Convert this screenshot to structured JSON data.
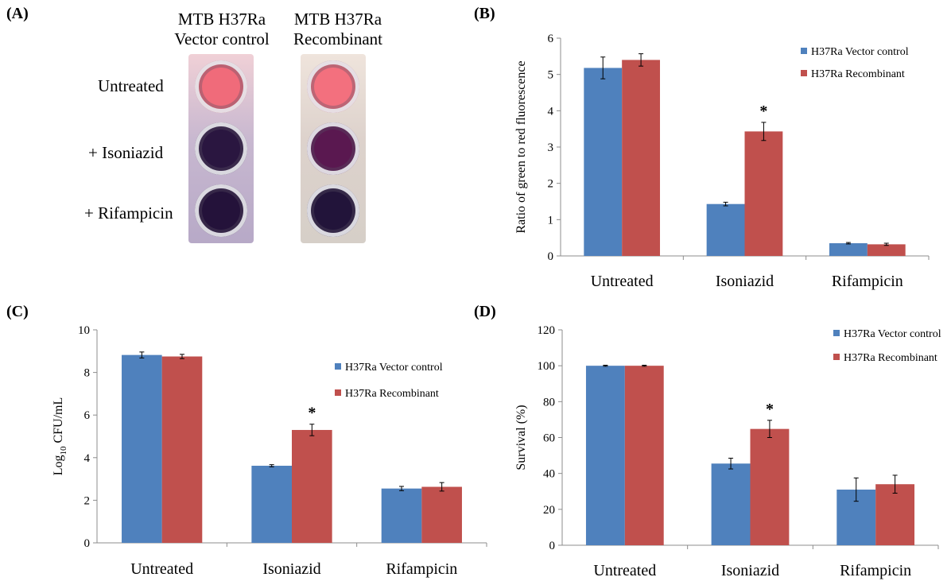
{
  "panels": {
    "a": {
      "label": "(A)",
      "col1": [
        "MTB H37Ra",
        "Vector control"
      ],
      "col2": [
        "MTB H37Ra",
        "Recombinant"
      ],
      "rows": [
        "Untreated",
        "+ Isoniazid",
        "+ Rifampicin"
      ],
      "well_colors": {
        "col1": [
          "#f06b7a",
          "#2a1640",
          "#24123a"
        ],
        "col2": [
          "#f3707e",
          "#5a1850",
          "#22143a"
        ]
      }
    },
    "b": {
      "label": "(B)"
    },
    "c": {
      "label": "(C)"
    },
    "d": {
      "label": "(D)"
    }
  },
  "colors": {
    "vector": "#4f81bd",
    "recombinant": "#c0504d"
  },
  "chart_data": [
    {
      "id": "b",
      "type": "bar",
      "categories": [
        "Untreated",
        "Isoniazid",
        "Rifampicin"
      ],
      "ylabel": "Ratio of green to red fluorescence",
      "ylim": [
        0,
        6
      ],
      "yticks": [
        "0",
        "1",
        "2",
        "3",
        "4",
        "5",
        "6"
      ],
      "legend": "top-right",
      "series": [
        {
          "name": "H37Ra Vector control",
          "values": [
            5.18,
            1.43,
            0.35
          ],
          "errors": [
            0.3,
            0.05,
            0.02
          ]
        },
        {
          "name": "H37Ra Recombinant",
          "values": [
            5.4,
            3.43,
            0.32
          ],
          "errors": [
            0.17,
            0.25,
            0.03
          ]
        }
      ],
      "annotation": "*"
    },
    {
      "id": "c",
      "type": "bar",
      "categories": [
        "Untreated",
        "Isoniazid",
        "Rifampicin"
      ],
      "ylabel_main": "Log",
      "ylabel_sub": "10",
      "ylabel_rest": " CFU/mL",
      "ylim": [
        0,
        10
      ],
      "yticks": [
        "0",
        "2",
        "4",
        "6",
        "8",
        "10"
      ],
      "legend": "top-right",
      "series": [
        {
          "name": "H37Ra Vector control",
          "values": [
            8.82,
            3.62,
            2.55
          ],
          "errors": [
            0.14,
            0.05,
            0.1
          ]
        },
        {
          "name": "H37Ra Recombinant",
          "values": [
            8.75,
            5.3,
            2.63
          ],
          "errors": [
            0.1,
            0.27,
            0.2
          ]
        }
      ],
      "annotation": "*"
    },
    {
      "id": "d",
      "type": "bar",
      "categories": [
        "Untreated",
        "Isoniazid",
        "Rifampicin"
      ],
      "ylabel": "Survival (%)",
      "ylim": [
        0,
        120
      ],
      "yticks": [
        "0",
        "20",
        "40",
        "60",
        "80",
        "100",
        "120"
      ],
      "legend": "top-right",
      "series": [
        {
          "name": "H37Ra Vector control",
          "values": [
            100,
            45.5,
            31
          ],
          "errors": [
            0.3,
            3,
            6.5
          ]
        },
        {
          "name": "H37Ra Recombinant",
          "values": [
            100,
            64.8,
            34
          ],
          "errors": [
            0.3,
            4.8,
            5
          ]
        }
      ],
      "annotation": "*"
    }
  ]
}
